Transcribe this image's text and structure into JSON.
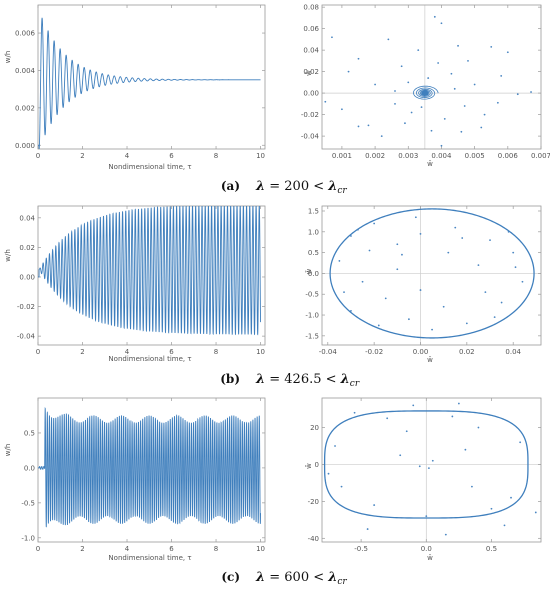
{
  "chart_data": [
    {
      "id": "a-time",
      "type": "line",
      "xlabel": "Nondimensional time, τ",
      "ylabel": "w/h",
      "xlim": [
        0,
        10.2
      ],
      "ylim": [
        -0.0002,
        0.0075
      ],
      "xticks": [
        0,
        2,
        4,
        6,
        8,
        10
      ],
      "yticks": [
        0.0,
        0.002,
        0.004,
        0.006
      ],
      "ytick_labels": [
        "0.000",
        "0.002",
        "0.004",
        "0.006"
      ],
      "series": [
        {
          "model": "decay",
          "values": {
            "mean": 0.0035,
            "amp0": 0.0037,
            "decay_rate": 0.85,
            "frequency": 3.7,
            "start": 0.05,
            "end": 10.0,
            "first_peak": 0.0072,
            "first_trough": 0.0003,
            "steady_state": 0.0035
          }
        }
      ],
      "caption": {
        "tag": "(a)",
        "lambda": "200",
        "relation": "<",
        "critical_sub": "cr"
      }
    },
    {
      "id": "a-phase",
      "type": "scatter",
      "xlabel": "w̄",
      "ylabel": "w̄̇",
      "xlim": [
        0.0004,
        0.007
      ],
      "ylim": [
        -0.052,
        0.082
      ],
      "xticks": [
        0.001,
        0.002,
        0.003,
        0.004,
        0.005,
        0.006,
        0.007
      ],
      "xtick_labels": [
        "0.001",
        "0.002",
        "0.003",
        "0.004",
        "0.005",
        "0.006",
        "0.007"
      ],
      "yticks": [
        -0.04,
        -0.02,
        0.0,
        0.02,
        0.04,
        0.06,
        0.08
      ],
      "ytick_labels": [
        "-0.04",
        "-0.02",
        "0.00",
        "0.02",
        "0.04",
        "0.06",
        "0.08"
      ],
      "focus": [
        0.0035,
        0.0
      ],
      "points": [
        [
          0.0007,
          0.052
        ],
        [
          0.0038,
          0.071
        ],
        [
          0.004,
          0.065
        ],
        [
          0.006,
          0.038
        ],
        [
          0.0055,
          0.043
        ],
        [
          0.0024,
          0.05
        ],
        [
          0.0018,
          -0.03
        ],
        [
          0.0015,
          -0.031
        ],
        [
          0.0022,
          -0.04
        ],
        [
          0.0053,
          -0.02
        ],
        [
          0.004,
          -0.049
        ],
        [
          0.0046,
          -0.036
        ],
        [
          0.0012,
          0.02
        ],
        [
          0.0048,
          0.03
        ],
        [
          0.0028,
          0.025
        ],
        [
          0.005,
          0.008
        ],
        [
          0.002,
          0.008
        ],
        [
          0.0043,
          0.018
        ],
        [
          0.0026,
          -0.01
        ],
        [
          0.0047,
          -0.012
        ],
        [
          0.003,
          0.01
        ],
        [
          0.0041,
          -0.024
        ],
        [
          0.0031,
          -0.018
        ],
        [
          0.0044,
          0.004
        ],
        [
          0.0026,
          0.002
        ],
        [
          0.0036,
          0.014
        ],
        [
          0.0034,
          -0.013
        ],
        [
          0.0063,
          -0.001
        ],
        [
          0.0005,
          -0.008
        ],
        [
          0.0058,
          0.016
        ],
        [
          0.001,
          -0.015
        ],
        [
          0.0052,
          -0.032
        ],
        [
          0.0033,
          0.04
        ],
        [
          0.0037,
          -0.035
        ],
        [
          0.0039,
          0.028
        ],
        [
          0.0067,
          0.001
        ],
        [
          0.0057,
          -0.009
        ],
        [
          0.0015,
          0.032
        ],
        [
          0.0029,
          -0.028
        ],
        [
          0.0045,
          0.044
        ]
      ]
    },
    {
      "id": "b-time",
      "type": "line",
      "xlabel": "Nondimensional time, τ",
      "ylabel": "w/h",
      "xlim": [
        0,
        10.2
      ],
      "ylim": [
        -0.046,
        0.048
      ],
      "xticks": [
        0,
        2,
        4,
        6,
        8,
        10
      ],
      "yticks": [
        -0.04,
        -0.02,
        0.0,
        0.02,
        0.04
      ],
      "ytick_labels": [
        "-0.04",
        "-0.02",
        "0.00",
        "0.02",
        "0.04"
      ],
      "series": [
        {
          "model": "growth",
          "values": {
            "mean": 0.005,
            "amp_max": 0.044,
            "growth_rate": 0.6,
            "frequency": 7.0,
            "start": 0.05,
            "end": 10.0,
            "max": 0.049,
            "min": -0.039
          }
        }
      ],
      "caption": {
        "tag": "(b)",
        "lambda": "426.5",
        "relation": "<",
        "critical_sub": "cr"
      }
    },
    {
      "id": "b-phase",
      "type": "scatter",
      "xlabel": "w̄",
      "ylabel": "w̄̇",
      "xlim": [
        -0.0425,
        0.052
      ],
      "ylim": [
        -1.72,
        1.62
      ],
      "xticks": [
        -0.04,
        -0.02,
        0.0,
        0.02,
        0.04
      ],
      "xtick_labels": [
        "-0.04",
        "-0.02",
        "0.00",
        "0.02",
        "0.04"
      ],
      "yticks": [
        -1.5,
        -1.0,
        -0.5,
        0.0,
        0.5,
        1.0,
        1.5
      ],
      "ytick_labels": [
        "-1.5",
        "-1.0",
        "-0.5",
        "0.0",
        "0.5",
        "1.0",
        "1.5"
      ],
      "orbit": {
        "cx": 0.005,
        "cy": 0.0,
        "rx": 0.044,
        "ry": 1.55
      },
      "points": [
        [
          -0.03,
          0.9
        ],
        [
          -0.02,
          1.2
        ],
        [
          -0.01,
          0.7
        ],
        [
          0.0,
          0.95
        ],
        [
          0.015,
          1.1
        ],
        [
          0.03,
          0.8
        ],
        [
          0.04,
          0.5
        ],
        [
          -0.035,
          0.3
        ],
        [
          -0.025,
          -0.2
        ],
        [
          -0.015,
          -0.6
        ],
        [
          -0.005,
          -1.1
        ],
        [
          0.01,
          -0.8
        ],
        [
          0.02,
          -1.2
        ],
        [
          0.035,
          -0.7
        ],
        [
          0.044,
          -0.2
        ],
        [
          -0.03,
          -0.9
        ],
        [
          0.0,
          -0.4
        ],
        [
          0.025,
          0.2
        ],
        [
          -0.01,
          0.1
        ],
        [
          0.012,
          0.5
        ],
        [
          -0.022,
          0.55
        ],
        [
          0.032,
          -1.05
        ],
        [
          -0.002,
          1.35
        ],
        [
          0.038,
          1.0
        ],
        [
          -0.033,
          -0.45
        ],
        [
          0.005,
          -1.35
        ],
        [
          0.018,
          0.85
        ],
        [
          -0.018,
          -1.25
        ],
        [
          0.041,
          0.15
        ],
        [
          -0.008,
          0.45
        ],
        [
          0.028,
          -0.45
        ],
        [
          -0.027,
          1.05
        ]
      ]
    },
    {
      "id": "c-time",
      "type": "line",
      "xlabel": "Nondimensional time, τ",
      "ylabel": "w/h",
      "xlim": [
        0,
        10.2
      ],
      "ylim": [
        -1.06,
        1.0
      ],
      "xticks": [
        0,
        2,
        4,
        6,
        8,
        10
      ],
      "yticks": [
        -1.0,
        -0.5,
        0.0,
        0.5
      ],
      "ytick_labels": [
        "-1.0",
        "-0.5",
        "0.0",
        "0.5"
      ],
      "series": [
        {
          "model": "snap",
          "values": {
            "onset": 0.3,
            "envelope_upper": 0.75,
            "envelope_lower": -0.8,
            "early_peak": 0.93,
            "early_trough": -0.95,
            "frequency": 10.5,
            "start": 0.05,
            "end": 10.0
          }
        }
      ],
      "caption": {
        "tag": "(c)",
        "lambda": "600",
        "relation": "<",
        "critical_sub": "cr"
      }
    },
    {
      "id": "c-phase",
      "type": "scatter",
      "xlabel": "w̄",
      "ylabel": "w̄̇",
      "xlim": [
        -0.8,
        0.88
      ],
      "ylim": [
        -42,
        36
      ],
      "xticks": [
        -0.5,
        0.0,
        0.5
      ],
      "xtick_labels": [
        "-0.5",
        "0.0",
        "0.5"
      ],
      "yticks": [
        -40,
        -20,
        0,
        20
      ],
      "ytick_labels": [
        "-40",
        "-20",
        "0",
        "20"
      ],
      "orbit": {
        "cx": 0.0,
        "cy": 0.0,
        "rx": 0.78,
        "ry": 29,
        "squareness": 3.2
      },
      "points": [
        [
          -0.3,
          25
        ],
        [
          -0.1,
          32
        ],
        [
          0.2,
          26
        ],
        [
          0.4,
          20
        ],
        [
          0.65,
          -18
        ],
        [
          0.5,
          -24
        ],
        [
          0.0,
          -28
        ],
        [
          -0.4,
          -22
        ],
        [
          -0.65,
          -12
        ],
        [
          -0.7,
          10
        ],
        [
          0.05,
          2
        ],
        [
          -0.05,
          -1
        ],
        [
          0.02,
          -2
        ],
        [
          0.3,
          8
        ],
        [
          -0.2,
          5
        ],
        [
          0.6,
          -33
        ],
        [
          -0.55,
          28
        ],
        [
          0.72,
          12
        ],
        [
          -0.75,
          -5
        ],
        [
          0.15,
          -38
        ],
        [
          -0.15,
          18
        ],
        [
          0.35,
          -12
        ],
        [
          0.84,
          -26
        ],
        [
          -0.45,
          -35
        ],
        [
          0.25,
          33
        ]
      ]
    }
  ]
}
